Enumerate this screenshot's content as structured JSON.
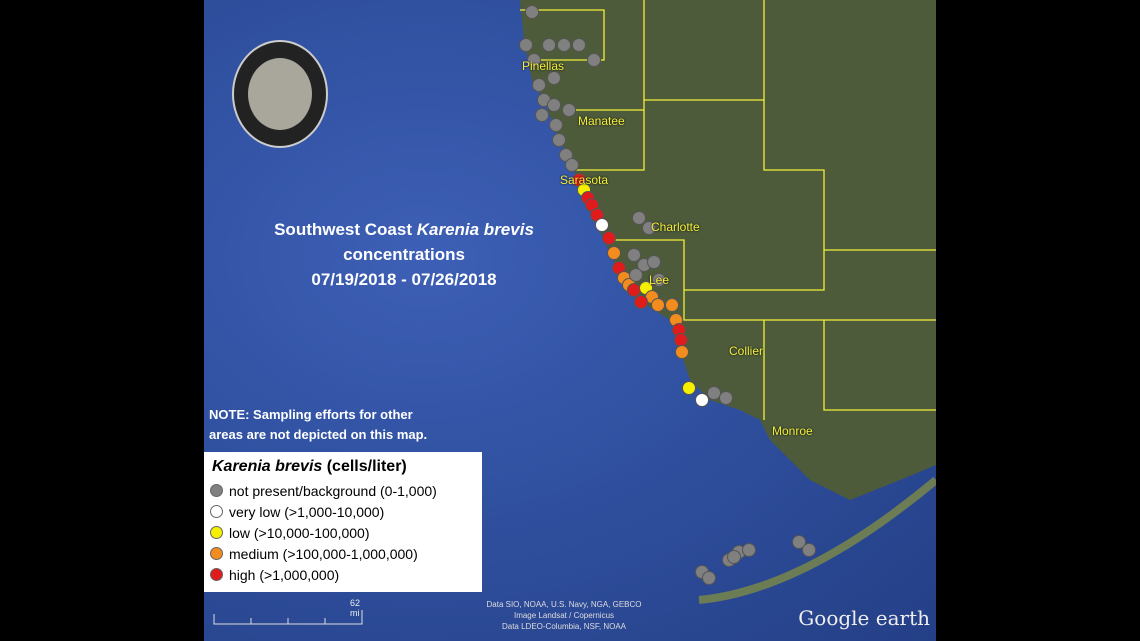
{
  "title": {
    "line1_prefix": "Southwest Coast ",
    "line1_species": "Karenia brevis",
    "line2": "concentrations",
    "line3": "07/19/2018 - 07/26/2018"
  },
  "note": {
    "line1": "NOTE: Sampling efforts for other",
    "line2": "areas are not depicted on this map."
  },
  "legend": {
    "species": "Karenia brevis",
    "unit": " (cells/liter)",
    "items": [
      {
        "label": "not present/background (0-1,000)",
        "color": "#808080"
      },
      {
        "label": "very low (>1,000-10,000)",
        "color": "#ffffff"
      },
      {
        "label": "low (>10,000-100,000)",
        "color": "#f5f000"
      },
      {
        "label": "medium (>100,000-1,000,000)",
        "color": "#f28c1e"
      },
      {
        "label": "high (>1,000,000)",
        "color": "#e01b1b"
      }
    ]
  },
  "counties": [
    "Pinellas",
    "Manatee",
    "Sarasota",
    "Charlotte",
    "Lee",
    "Collier",
    "Monroe"
  ],
  "logo_text": "FLORIDA FISH AND WILDLIFE CONSERVATION COMMISSION",
  "scale": "62 mi",
  "attribution": {
    "l1": "Data SIO, NOAA, U.S. Navy, NGA, GEBCO",
    "l2": "Image Landsat / Copernicus",
    "l3": "Data LDEO-Columbia, NSF, NOAA"
  },
  "brand": "Google earth",
  "colors": {
    "county_lines": "#f2ee3a",
    "water": "#2f4f9e",
    "land": "#4a5a3a"
  }
}
